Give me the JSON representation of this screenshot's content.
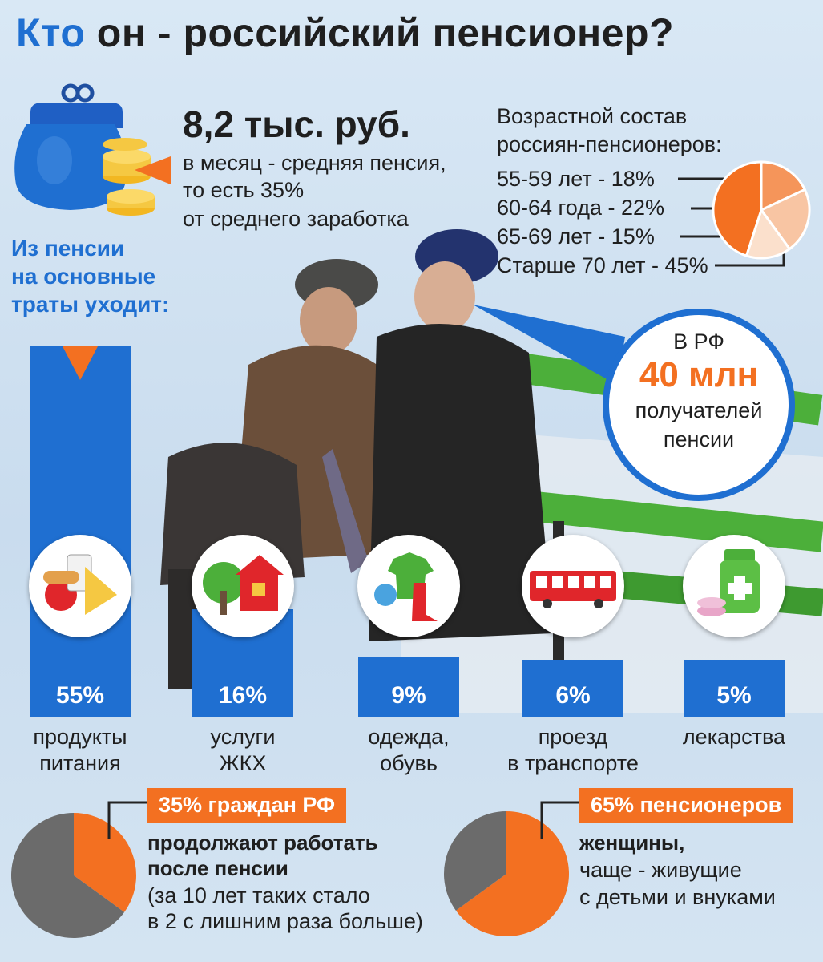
{
  "title": {
    "highlight": "Кто",
    "rest": "он - российский пенсионер?"
  },
  "pension": {
    "amount": "8,2 тыс. руб.",
    "line1": "в месяц - средняя пенсия,",
    "line2": "то есть 35%",
    "line3": "от среднего заработка"
  },
  "spending_intro": [
    "Из пенсии",
    "на основные",
    "траты уходит:"
  ],
  "age": {
    "title1": "Возрастной состав",
    "title2": "россиян-пенсионеров:",
    "rows": [
      "55-59 лет - 18%",
      "60-64 года - 22%",
      "65-69 лет - 15%",
      "Старше 70 лет - 45%"
    ]
  },
  "callout": {
    "l1": "В РФ",
    "l2": "40 млн",
    "l3": "получателей",
    "l4": "пенсии"
  },
  "working": {
    "badge": "35% граждан РФ",
    "l1": "продолжают работать",
    "l2": "после пенсии",
    "l3": "(за 10 лет таких стало",
    "l4": "в 2 с лишним раза больше)"
  },
  "women": {
    "badge": "65% пенсионеров",
    "l1": "женщины,",
    "l2": "чаще - живущие",
    "l3": "с детьми и внуками"
  },
  "colors": {
    "blue": "#1f6fd1",
    "orange": "#f37021",
    "gray": "#6b6b6b"
  },
  "chart_data": [
    {
      "type": "bar",
      "categories": [
        "продукты питания",
        "услуги ЖКХ",
        "одежда, обувь",
        "проезд в транспорте",
        "лекарства"
      ],
      "label_lines": [
        [
          "продукты",
          "питания"
        ],
        [
          "услуги",
          "ЖКХ"
        ],
        [
          "одежда,",
          "обувь"
        ],
        [
          "проезд",
          "в транспорте"
        ],
        [
          "лекарства"
        ]
      ],
      "values": [
        55,
        16,
        9,
        6,
        5
      ],
      "value_labels": [
        "55%",
        "16%",
        "9%",
        "6%",
        "5%"
      ],
      "icons": [
        "food-icon",
        "house-icon",
        "clothing-icon",
        "bus-icon",
        "medicine-icon"
      ],
      "unit": "%",
      "ylim": [
        0,
        55
      ]
    },
    {
      "type": "pie",
      "labels": [
        "55-59 лет",
        "60-64 года",
        "65-69 лет",
        "Старше 70 лет"
      ],
      "values": [
        18,
        22,
        15,
        45
      ],
      "colors": [
        "#f5955a",
        "#f8c5a3",
        "#fbe0cc",
        "#f37021"
      ]
    },
    {
      "type": "pie",
      "labels": [
        "35% граждан РФ",
        ""
      ],
      "values": [
        35,
        65
      ],
      "colors": [
        "#f37021",
        "#6b6b6b"
      ]
    },
    {
      "type": "pie",
      "labels": [
        "65% пенсионеров",
        ""
      ],
      "values": [
        65,
        35
      ],
      "colors": [
        "#f37021",
        "#6b6b6b"
      ]
    }
  ]
}
